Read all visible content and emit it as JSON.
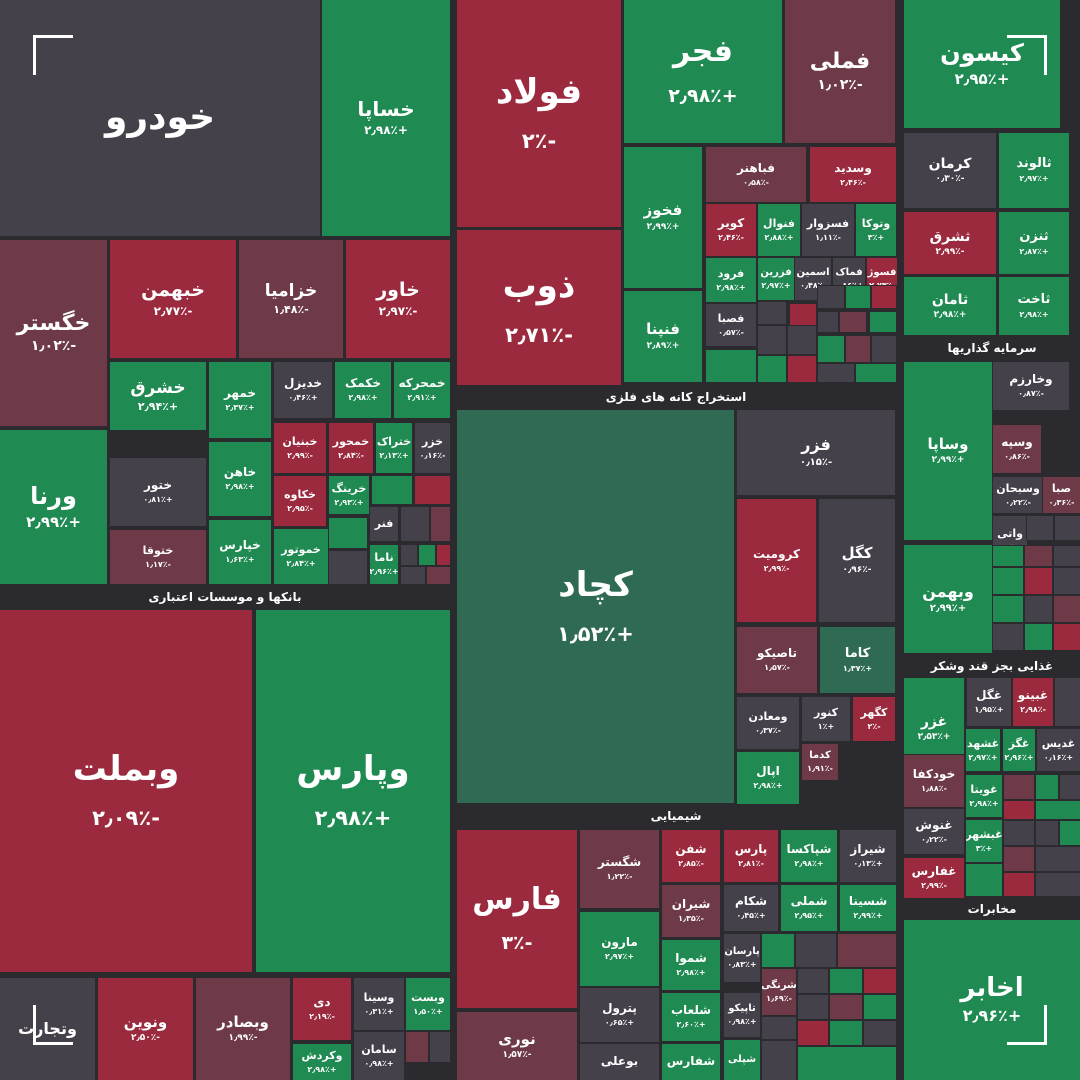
{
  "colors": {
    "green": "#1f8a52",
    "red": "#9b2a3e",
    "dark": "#45414b",
    "muted_red": "#6e3a48",
    "teal": "#2f6a52",
    "background": "#2b2b2f"
  },
  "sectors": {
    "banks": "بانکها و موسسات اعتباری",
    "metals": "استخراج کانه های فلزی",
    "investment": "سرمایه گذاریها",
    "chemical": "شیمیایی",
    "food": "غذایی بجز قند وشکر",
    "telecom": "مخابرات"
  },
  "tiles": [
    {
      "sym": "خودرو",
      "chg": "",
      "color": "dark"
    },
    {
      "sym": "خساپا",
      "chg": "+۲٫۹۸٪",
      "color": "green"
    },
    {
      "sym": "فولاد",
      "chg": "-۲٪",
      "color": "red"
    },
    {
      "sym": "فجر",
      "chg": "+۲٫۹۸٪",
      "color": "green"
    },
    {
      "sym": "فملی",
      "chg": "-۱٫۰۲٪",
      "color": "muted_red"
    },
    {
      "sym": "کیسون",
      "chg": "+۲٫۹۵٪",
      "color": "green"
    },
    {
      "sym": "خگستر",
      "chg": "-۱٫۰۲٪",
      "color": "muted_red"
    },
    {
      "sym": "خبهمن",
      "chg": "-۲٫۷۷٪",
      "color": "red"
    },
    {
      "sym": "خزامیا",
      "chg": "-۱٫۴۸٪",
      "color": "muted_red"
    },
    {
      "sym": "خاور",
      "chg": "-۲٫۹۷٪",
      "color": "red"
    },
    {
      "sym": "ذوب",
      "chg": "-۲٫۷۱٪",
      "color": "red"
    },
    {
      "sym": "فخوز",
      "chg": "+۲٫۹۹٪",
      "color": "green"
    },
    {
      "sym": "فباهنر",
      "chg": "-۰٫۵۸٪",
      "color": "muted_red"
    },
    {
      "sym": "وسدید",
      "chg": "-۲٫۴۶٪",
      "color": "red"
    },
    {
      "sym": "کرمان",
      "chg": "-۰٫۳۰٪",
      "color": "dark"
    },
    {
      "sym": "ثالوند",
      "chg": "+۲٫۹۷٪",
      "color": "green"
    },
    {
      "sym": "کویر",
      "chg": "-۲٫۴۶٪",
      "color": "red"
    },
    {
      "sym": "فنوال",
      "chg": "+۲٫۸۸٪",
      "color": "green"
    },
    {
      "sym": "فسزوار",
      "chg": "-۱٫۱۱٪",
      "color": "dark"
    },
    {
      "sym": "وتوکا",
      "chg": "+۳٪",
      "color": "green"
    },
    {
      "sym": "فزرین",
      "chg": "+۲٫۹۷٪",
      "color": "green"
    },
    {
      "sym": "اسمین",
      "chg": "-۰٫۴۸٪",
      "color": "dark"
    },
    {
      "sym": "فماک",
      "chg": "+۰٫۸۶٪",
      "color": "dark"
    },
    {
      "sym": "فسوژ",
      "chg": "-۲٫۷۳٪",
      "color": "red"
    },
    {
      "sym": "ثشرق",
      "chg": "-۲٫۹۹٪",
      "color": "red"
    },
    {
      "sym": "ثنزن",
      "chg": "+۲٫۸۷٪",
      "color": "green"
    },
    {
      "sym": "فرود",
      "chg": "+۲٫۹۸٪",
      "color": "green"
    },
    {
      "sym": "فنپنا",
      "chg": "+۲٫۸۹٪",
      "color": "green"
    },
    {
      "sym": "فصبا",
      "chg": "-۰٫۵۷٪",
      "color": "dark"
    },
    {
      "sym": "ثامان",
      "chg": "+۲٫۹۸٪",
      "color": "green"
    },
    {
      "sym": "ثاخت",
      "chg": "+۲٫۹۸٪",
      "color": "green"
    },
    {
      "sym": "خشرق",
      "chg": "+۲٫۹۴٪",
      "color": "green"
    },
    {
      "sym": "خمهر",
      "chg": "+۲٫۳۷٪",
      "color": "green"
    },
    {
      "sym": "خدیزل",
      "chg": "+۰٫۴۶٪",
      "color": "dark"
    },
    {
      "sym": "خکمک",
      "chg": "+۲٫۹۸٪",
      "color": "green"
    },
    {
      "sym": "خمحرکه",
      "chg": "+۲٫۹۱٪",
      "color": "green"
    },
    {
      "sym": "ورنا",
      "chg": "+۲٫۹۹٪",
      "color": "green"
    },
    {
      "sym": "ختور",
      "chg": "+۰٫۸۱٪",
      "color": "dark"
    },
    {
      "sym": "خاهن",
      "chg": "+۲٫۹۸٪",
      "color": "green"
    },
    {
      "sym": "خبنیان",
      "chg": "-۲٫۹۹٪",
      "color": "red"
    },
    {
      "sym": "خمحور",
      "chg": "-۲٫۸۴٪",
      "color": "red"
    },
    {
      "sym": "ختراک",
      "chg": "+۲٫۱۳٪",
      "color": "green"
    },
    {
      "sym": "خزر",
      "chg": "-۰٫۱۶٪",
      "color": "dark"
    },
    {
      "sym": "خکاوه",
      "chg": "-۲٫۹۵٪",
      "color": "red"
    },
    {
      "sym": "خرینگ",
      "chg": "+۲٫۹۳٪",
      "color": "green"
    },
    {
      "sym": "ختوقا",
      "chg": "-۱٫۱۷٪",
      "color": "muted_red"
    },
    {
      "sym": "خپارس",
      "chg": "+۱٫۶۳٪",
      "color": "green"
    },
    {
      "sym": "خموتور",
      "chg": "+۲٫۸۴٪",
      "color": "green"
    },
    {
      "sym": "فنر",
      "chg": "",
      "color": "dark"
    },
    {
      "sym": "ناما",
      "chg": "+۲٫۹۶٪",
      "color": "green"
    },
    {
      "sym": "کچاد",
      "chg": "+۱٫۵۲٪",
      "color": "teal"
    },
    {
      "sym": "فزر",
      "chg": "-۰٫۱۵٪",
      "color": "dark"
    },
    {
      "sym": "کرومیت",
      "chg": "-۲٫۹۹٪",
      "color": "red"
    },
    {
      "sym": "کگل",
      "chg": "-۰٫۹۶٪",
      "color": "dark"
    },
    {
      "sym": "تاصیکو",
      "chg": "-۱٫۵۷٪",
      "color": "muted_red"
    },
    {
      "sym": "کاما",
      "chg": "+۱٫۳۷٪",
      "color": "teal"
    },
    {
      "sym": "ومعادن",
      "chg": "-۰٫۳۷٪",
      "color": "dark"
    },
    {
      "sym": "کنور",
      "chg": "+۱٪",
      "color": "dark"
    },
    {
      "sym": "کگهر",
      "chg": "-۲٪",
      "color": "red"
    },
    {
      "sym": "کدما",
      "chg": "-۱٫۹۱٪",
      "color": "muted_red"
    },
    {
      "sym": "اپال",
      "chg": "+۲٫۹۸٪",
      "color": "green"
    },
    {
      "sym": "وساپا",
      "chg": "+۲٫۹۹٪",
      "color": "green"
    },
    {
      "sym": "وخارزم",
      "chg": "-۰٫۸۷٪",
      "color": "dark"
    },
    {
      "sym": "وسپه",
      "chg": "-۰٫۸۶٪",
      "color": "muted_red"
    },
    {
      "sym": "وسبحان",
      "chg": "-۰٫۲۲٪",
      "color": "dark"
    },
    {
      "sym": "وبهمن",
      "chg": "+۲٫۹۹٪",
      "color": "green"
    },
    {
      "sym": "واتی",
      "chg": "۰٪",
      "color": "dark"
    },
    {
      "sym": "صبا",
      "chg": "-۰٫۳۶٪",
      "color": "muted_red"
    },
    {
      "sym": "غزر",
      "chg": "+۲٫۵۳٪",
      "color": "green"
    },
    {
      "sym": "غگل",
      "chg": "+۱٫۹۵٪",
      "color": "dark"
    },
    {
      "sym": "غبینو",
      "chg": "-۲٫۹۸٪",
      "color": "red"
    },
    {
      "sym": "غشهد",
      "chg": "+۲٫۹۷٪",
      "color": "green"
    },
    {
      "sym": "غگز",
      "chg": "+۲٫۹۶٪",
      "color": "green"
    },
    {
      "sym": "غدیس",
      "chg": "+۰٫۱۶٪",
      "color": "dark"
    },
    {
      "sym": "خودکفا",
      "chg": "-۱٫۸۸٪",
      "color": "muted_red"
    },
    {
      "sym": "غویتا",
      "chg": "+۲٫۹۸٪",
      "color": "green"
    },
    {
      "sym": "غنوش",
      "chg": "-۰٫۲۲٪",
      "color": "dark"
    },
    {
      "sym": "غبشهر",
      "chg": "+۳٪",
      "color": "green"
    },
    {
      "sym": "غفارس",
      "chg": "-۲٫۹۹٪",
      "color": "red"
    },
    {
      "sym": "اخابر",
      "chg": "+۲٫۹۶٪",
      "color": "green"
    },
    {
      "sym": "وبملت",
      "chg": "-۲٫۰۹٪",
      "color": "red"
    },
    {
      "sym": "وپارس",
      "chg": "+۲٫۹۸٪",
      "color": "green"
    },
    {
      "sym": "وتجارت",
      "chg": "",
      "color": "dark"
    },
    {
      "sym": "ونوین",
      "chg": "-۲٫۵۰٪",
      "color": "red"
    },
    {
      "sym": "وبصادر",
      "chg": "-۱٫۹۹٪",
      "color": "muted_red"
    },
    {
      "sym": "دی",
      "chg": "-۲٫۱۹٪",
      "color": "red"
    },
    {
      "sym": "وسینا",
      "chg": "+۰٫۳۱٪",
      "color": "dark"
    },
    {
      "sym": "وبست",
      "chg": "+۱٫۵۰٪",
      "color": "green"
    },
    {
      "sym": "سامان",
      "chg": "+۰٫۹۸٪",
      "color": "dark"
    },
    {
      "sym": "وکردش",
      "chg": "+۲٫۹۸٪",
      "color": "green"
    },
    {
      "sym": "فارس",
      "chg": "-۳٪",
      "color": "red"
    },
    {
      "sym": "شگستر",
      "chg": "-۱٫۲۲٪",
      "color": "muted_red"
    },
    {
      "sym": "شفن",
      "chg": "-۲٫۸۵٪",
      "color": "red"
    },
    {
      "sym": "پارس",
      "chg": "-۲٫۸۱٪",
      "color": "red"
    },
    {
      "sym": "شپاکسا",
      "chg": "+۲٫۹۸٪",
      "color": "green"
    },
    {
      "sym": "شیراز",
      "chg": "+۰٫۱۳٪",
      "color": "dark"
    },
    {
      "sym": "مارون",
      "chg": "+۲٫۹۷٪",
      "color": "green"
    },
    {
      "sym": "شیران",
      "chg": "-۱٫۳۵٪",
      "color": "muted_red"
    },
    {
      "sym": "شکام",
      "chg": "+۰٫۴۵٪",
      "color": "dark"
    },
    {
      "sym": "شملی",
      "chg": "+۲٫۹۵٪",
      "color": "green"
    },
    {
      "sym": "شسینا",
      "chg": "+۲٫۹۹٪",
      "color": "green"
    },
    {
      "sym": "شموا",
      "chg": "+۲٫۹۸٪",
      "color": "green"
    },
    {
      "sym": "پارسان",
      "chg": "+۰٫۸۳٪",
      "color": "dark"
    },
    {
      "sym": "شرنگی",
      "chg": "-۱٫۶۹٪",
      "color": "muted_red"
    },
    {
      "sym": "پترول",
      "chg": "+۰٫۶۵٪",
      "color": "dark"
    },
    {
      "sym": "شلعاب",
      "chg": "+۲٫۶۰٪",
      "color": "green"
    },
    {
      "sym": "تاپیکو",
      "chg": "+۰٫۹۸٪",
      "color": "dark"
    },
    {
      "sym": "نوری",
      "chg": "-۱٫۵۷٪",
      "color": "muted_red"
    },
    {
      "sym": "بوعلی",
      "chg": "",
      "color": "dark"
    },
    {
      "sym": "شفارس",
      "chg": "",
      "color": "green"
    },
    {
      "sym": "شپلی",
      "chg": "",
      "color": "green"
    }
  ],
  "filler_colors": [
    "dark",
    "green",
    "red",
    "dark",
    "muted_red",
    "green",
    "dark",
    "red",
    "green",
    "dark",
    "dark",
    "green",
    "muted_red",
    "dark",
    "green",
    "red",
    "dark",
    "green",
    "dark",
    "muted_red"
  ]
}
